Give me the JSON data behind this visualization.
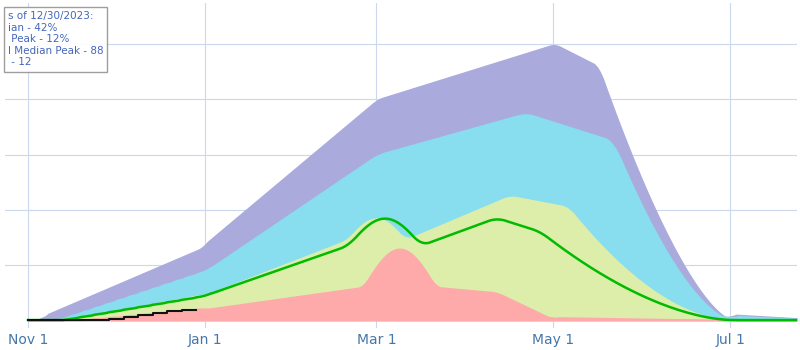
{
  "background_color": "#ffffff",
  "grid_color": "#ccd8ee",
  "x_tick_labels": [
    "Nov 1",
    "Jan 1",
    "Mar 1",
    "May 1",
    "Jul 1"
  ],
  "x_tick_positions": [
    0,
    61,
    120,
    181,
    242
  ],
  "band_colors": {
    "max_band": "#aaaadd",
    "upper_band": "#88ddee",
    "middle_band": "#ddeeaa",
    "lower_band": "#ffaaaa"
  },
  "median_line_color": "#00bb00",
  "current_line_color": "#111111",
  "legend_lines": [
    "s of 12/30/2023:",
    "ian - 42%",
    " Peak - 12%",
    "l Median Peak - 88",
    " - 12"
  ]
}
